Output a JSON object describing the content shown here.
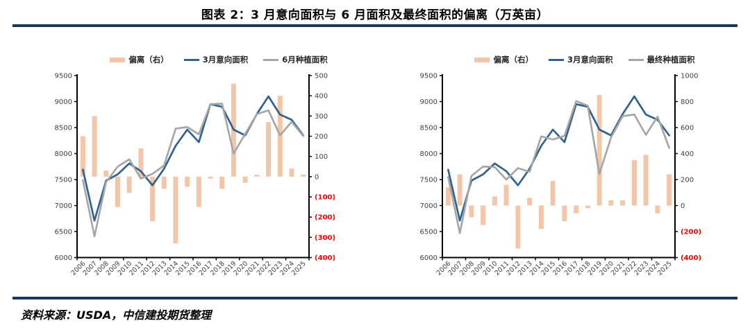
{
  "header": {
    "title": "图表 2：3 月意向面积与 6 月面积及最终面积的偏离（万英亩）"
  },
  "footer": {
    "source": "资料来源：USDA，中信建投期货整理"
  },
  "colors": {
    "divider_rule": "#17375E",
    "bar": "#F3C6AA",
    "line_march": "#2F6193",
    "line_secondary": "#A6A6A6",
    "axis_line": "#000000",
    "axis_label": "#3F3F3F",
    "negative_label": "#FF0000"
  },
  "chart_data": [
    {
      "type": "bar",
      "subtype": "bar+line combo, dual axis",
      "position": "left",
      "legend_position": "top",
      "grid": false,
      "categories": [
        "2006",
        "2007",
        "2008",
        "2009",
        "2010",
        "2011",
        "2012",
        "2013",
        "2014",
        "2015",
        "2016",
        "2017",
        "2018",
        "2019",
        "2020",
        "2021",
        "2022",
        "2023",
        "2024",
        "2025"
      ],
      "series": [
        {
          "name": "偏离（右）",
          "kind": "bar",
          "axis": "right",
          "color_key": "bar",
          "values": [
            200,
            300,
            30,
            -150,
            -80,
            140,
            -220,
            -60,
            -330,
            -50,
            -150,
            -10,
            -60,
            460,
            -30,
            10,
            270,
            400,
            40,
            10
          ]
        },
        {
          "name": "3月意向面积",
          "kind": "line",
          "axis": "left",
          "color_key": "line_march",
          "values": [
            7690,
            6710,
            7480,
            7600,
            7810,
            7660,
            7390,
            7710,
            8150,
            8460,
            8220,
            8950,
            8900,
            8460,
            8350,
            8760,
            9100,
            8750,
            8650,
            8350
          ]
        },
        {
          "name": "6月种植面积",
          "kind": "line",
          "axis": "left",
          "color_key": "line_secondary",
          "values": [
            7490,
            6410,
            7450,
            7750,
            7890,
            7520,
            7610,
            7770,
            8480,
            8510,
            8370,
            8950,
            8960,
            8000,
            8380,
            8760,
            8830,
            8350,
            8610,
            8340
          ]
        }
      ],
      "left_axis": {
        "min": 6000,
        "max": 9500,
        "step": 500
      },
      "right_axis": {
        "min": -400,
        "max": 500,
        "step": 100,
        "negative_format": "parentheses-red"
      }
    },
    {
      "type": "bar",
      "subtype": "bar+line combo, dual axis",
      "position": "right",
      "legend_position": "top",
      "grid": false,
      "categories": [
        "2006",
        "2007",
        "2008",
        "2009",
        "2010",
        "2011",
        "2012",
        "2013",
        "2014",
        "2015",
        "2016",
        "2017",
        "2018",
        "2019",
        "2020",
        "2021",
        "2022",
        "2023",
        "2024",
        "2025"
      ],
      "series": [
        {
          "name": "偏离（右）",
          "kind": "bar",
          "axis": "right",
          "color_key": "bar",
          "values": [
            140,
            240,
            -90,
            -150,
            70,
            160,
            -330,
            60,
            -180,
            190,
            -120,
            -60,
            -20,
            850,
            40,
            40,
            350,
            390,
            -60,
            240
          ]
        },
        {
          "name": "3月意向面积",
          "kind": "line",
          "axis": "left",
          "color_key": "line_march",
          "values": [
            7690,
            6710,
            7480,
            7600,
            7810,
            7660,
            7390,
            7710,
            8150,
            8460,
            8220,
            8950,
            8900,
            8460,
            8350,
            8760,
            9100,
            8750,
            8650,
            8350
          ]
        },
        {
          "name": "最终种植面积",
          "kind": "line",
          "axis": "left",
          "color_key": "line_secondary",
          "values": [
            7550,
            6470,
            7570,
            7750,
            7740,
            7500,
            7720,
            7650,
            8330,
            8270,
            8340,
            9010,
            8920,
            7610,
            8310,
            8720,
            8750,
            8360,
            8710,
            8110
          ]
        }
      ],
      "left_axis": {
        "min": 6000,
        "max": 9500,
        "step": 500
      },
      "right_axis": {
        "min": -400,
        "max": 1000,
        "step": 200,
        "negative_format": "parentheses-red"
      }
    }
  ]
}
